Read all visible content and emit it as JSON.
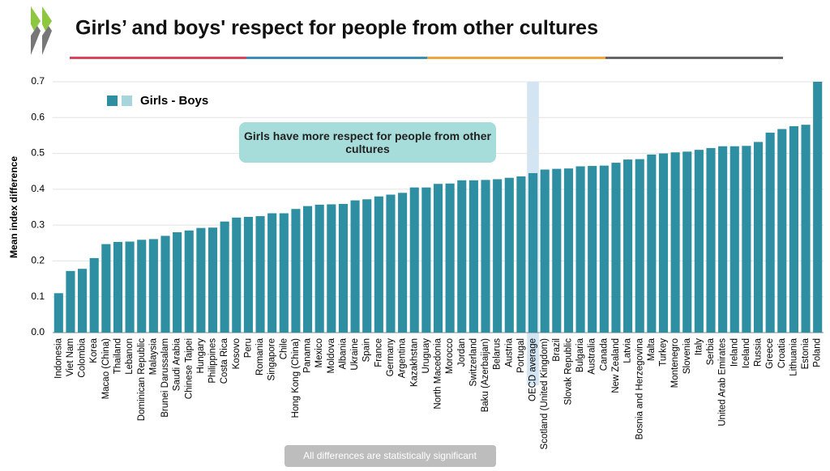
{
  "chart_data": {
    "type": "bar",
    "title": "Girls’ and boys' respect for people from other cultures",
    "y_label": "Mean index difference",
    "annotation": "Girls have more respect for people from other cultures",
    "footnote": "All differences are statistically significant",
    "categories": [
      "Indonesia",
      "Viet Nam",
      "Colombia",
      "Korea",
      "Macao (China)",
      "Thailand",
      "Lebanon",
      "Dominican Republic",
      "Malaysia",
      "Brunei Darussalam",
      "Saudi Arabia",
      "Chinese Taipei",
      "Hungary",
      "Philippines",
      "Costa Rica",
      "Kosovo",
      "Peru",
      "Romania",
      "Singapore",
      "Chile",
      "Hong Kong (China)",
      "Panama",
      "Mexico",
      "Moldova",
      "Albania",
      "Ukraine",
      "Spain",
      "France",
      "Germany",
      "Argentina",
      "Kazakhstan",
      "Uruguay",
      "North Macedonia",
      "Morocco",
      "Jordan",
      "Switzerland",
      "Baku (Azerbaijan)",
      "Belarus",
      "Austria",
      "Portugal",
      "OECD average",
      "Scotland (United Kingdom)",
      "Brazil",
      "Slovak Republic",
      "Bulgaria",
      "Australia",
      "Canada",
      "New Zealand",
      "Latvia",
      "Bosnia and Herzegovina",
      "Malta",
      "Turkey",
      "Montenegro",
      "Slovenia",
      "Italy",
      "Serbia",
      "United Arab Emirates",
      "Ireland",
      "Iceland",
      "Russia",
      "Greece",
      "Croatia",
      "Lithuania",
      "Estonia",
      "Poland"
    ],
    "series": [
      {
        "name": "Girls - Boys",
        "color": "#2e8fa3",
        "values": [
          0.11,
          0.172,
          0.178,
          0.208,
          0.247,
          0.253,
          0.254,
          0.259,
          0.261,
          0.27,
          0.28,
          0.285,
          0.292,
          0.293,
          0.31,
          0.321,
          0.323,
          0.325,
          0.333,
          0.333,
          0.345,
          0.353,
          0.357,
          0.358,
          0.359,
          0.369,
          0.372,
          0.38,
          0.385,
          0.39,
          0.405,
          0.405,
          0.415,
          0.416,
          0.425,
          0.425,
          0.426,
          0.428,
          0.432,
          0.436,
          0.445,
          0.455,
          0.457,
          0.458,
          0.464,
          0.465,
          0.466,
          0.474,
          0.483,
          0.484,
          0.497,
          0.5,
          0.503,
          0.505,
          0.51,
          0.515,
          0.52,
          0.52,
          0.521,
          0.532,
          0.558,
          0.568,
          0.576,
          0.58,
          0.7
        ]
      }
    ],
    "legend_light_color": "#a6d5dc",
    "highlight_category": "OECD average",
    "highlight_color": "#d3e4f2",
    "ylim": [
      0,
      0.7
    ],
    "yticks": [
      {
        "value": 0,
        "label": "0.0"
      },
      0.1,
      0.2,
      0.3,
      0.4,
      0.5,
      0.6,
      0.7
    ],
    "grid": true
  }
}
